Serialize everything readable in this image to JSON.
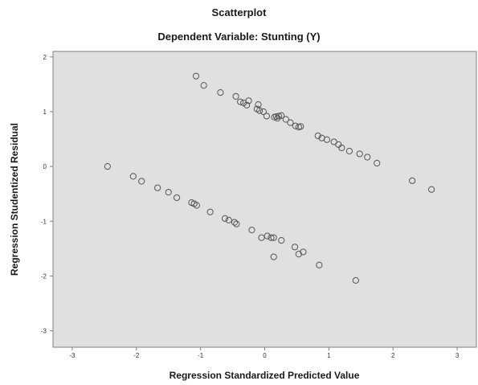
{
  "chart_data": {
    "type": "scatter",
    "title": "Scatterplot",
    "subtitle": "Dependent Variable: Stunting (Y)",
    "xlabel": "Regression Standardized Predicted Value",
    "ylabel": "Regression Studentized Residual",
    "xlim": [
      -3.3,
      3.3
    ],
    "ylim": [
      -3.3,
      2.1
    ],
    "xticks": [
      -3,
      -2,
      -1,
      0,
      1,
      2,
      3
    ],
    "yticks": [
      -3,
      -2,
      -1,
      0,
      1,
      2
    ],
    "grid": false,
    "plot_background": "#e0e0e0",
    "marker": "open-circle",
    "marker_color": "#555555",
    "points": [
      [
        -1.07,
        1.65
      ],
      [
        -0.95,
        1.48
      ],
      [
        -0.69,
        1.35
      ],
      [
        -0.45,
        1.28
      ],
      [
        -0.38,
        1.18
      ],
      [
        -0.33,
        1.16
      ],
      [
        -0.28,
        1.12
      ],
      [
        -0.25,
        1.2
      ],
      [
        -0.12,
        1.05
      ],
      [
        -0.08,
        1.02
      ],
      [
        -0.1,
        1.13
      ],
      [
        -0.02,
        1.0
      ],
      [
        0.03,
        0.92
      ],
      [
        0.15,
        0.9
      ],
      [
        0.18,
        0.91
      ],
      [
        0.2,
        0.88
      ],
      [
        0.22,
        0.92
      ],
      [
        0.26,
        0.93
      ],
      [
        0.33,
        0.86
      ],
      [
        0.4,
        0.8
      ],
      [
        0.48,
        0.74
      ],
      [
        0.53,
        0.72
      ],
      [
        0.56,
        0.73
      ],
      [
        0.83,
        0.56
      ],
      [
        0.89,
        0.52
      ],
      [
        0.97,
        0.49
      ],
      [
        1.08,
        0.45
      ],
      [
        1.15,
        0.4
      ],
      [
        1.2,
        0.34
      ],
      [
        1.32,
        0.28
      ],
      [
        1.48,
        0.23
      ],
      [
        1.6,
        0.17
      ],
      [
        1.75,
        0.06
      ],
      [
        2.3,
        -0.26
      ],
      [
        2.6,
        -0.42
      ],
      [
        -2.45,
        0.0
      ],
      [
        -2.05,
        -0.18
      ],
      [
        -1.92,
        -0.27
      ],
      [
        -1.67,
        -0.39
      ],
      [
        -1.5,
        -0.47
      ],
      [
        -1.37,
        -0.57
      ],
      [
        -1.14,
        -0.66
      ],
      [
        -1.1,
        -0.68
      ],
      [
        -1.06,
        -0.71
      ],
      [
        -0.85,
        -0.83
      ],
      [
        -0.62,
        -0.95
      ],
      [
        -0.56,
        -0.98
      ],
      [
        -0.47,
        -1.02
      ],
      [
        -0.44,
        -1.05
      ],
      [
        -0.2,
        -1.16
      ],
      [
        -0.05,
        -1.3
      ],
      [
        0.04,
        -1.27
      ],
      [
        0.1,
        -1.3
      ],
      [
        0.14,
        -1.3
      ],
      [
        0.26,
        -1.35
      ],
      [
        0.14,
        -1.65
      ],
      [
        0.47,
        -1.47
      ],
      [
        0.53,
        -1.6
      ],
      [
        0.6,
        -1.56
      ],
      [
        0.85,
        -1.8
      ],
      [
        1.42,
        -2.08
      ]
    ]
  }
}
